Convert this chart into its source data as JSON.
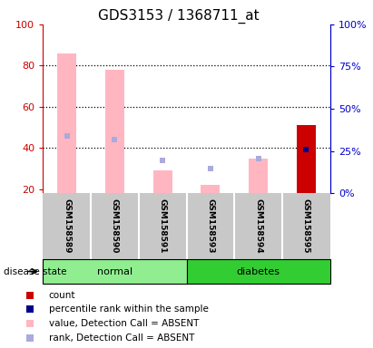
{
  "title": "GDS3153 / 1368711_at",
  "samples": [
    "GSM158589",
    "GSM158590",
    "GSM158591",
    "GSM158593",
    "GSM158594",
    "GSM158595"
  ],
  "groups": [
    "normal",
    "normal",
    "normal",
    "diabetes",
    "diabetes",
    "diabetes"
  ],
  "normal_color": "#90EE90",
  "diabetes_color": "#32CD32",
  "ylim_left": [
    18,
    100
  ],
  "ylim_right": [
    0,
    100
  ],
  "yticks_left": [
    20,
    40,
    60,
    80,
    100
  ],
  "yticks_right": [
    0,
    25,
    50,
    75,
    100
  ],
  "ytick_labels_right": [
    "0%",
    "25%",
    "50%",
    "75%",
    "100%"
  ],
  "value_absent": [
    86,
    78,
    29,
    22,
    35,
    null
  ],
  "rank_absent": [
    46,
    44,
    34,
    30,
    35,
    null
  ],
  "value_present": [
    null,
    null,
    null,
    null,
    null,
    51
  ],
  "rank_present": [
    null,
    null,
    null,
    null,
    null,
    39
  ],
  "bar_bottom": 18,
  "absent_value_color": "#FFB6C1",
  "absent_rank_color": "#AAAADD",
  "present_value_color": "#CC0000",
  "present_rank_color": "#00008B",
  "title_fontsize": 11,
  "axis_color_left": "#CC0000",
  "axis_color_right": "#0000CC",
  "legend_items": [
    {
      "label": "count",
      "color": "#CC0000"
    },
    {
      "label": "percentile rank within the sample",
      "color": "#00008B"
    },
    {
      "label": "value, Detection Call = ABSENT",
      "color": "#FFB6C1"
    },
    {
      "label": "rank, Detection Call = ABSENT",
      "color": "#AAAADD"
    }
  ],
  "bg_color": "#C8C8C8",
  "plot_bg": "#FFFFFF",
  "separator_color": "#FFFFFF",
  "grid_color": "#000000"
}
